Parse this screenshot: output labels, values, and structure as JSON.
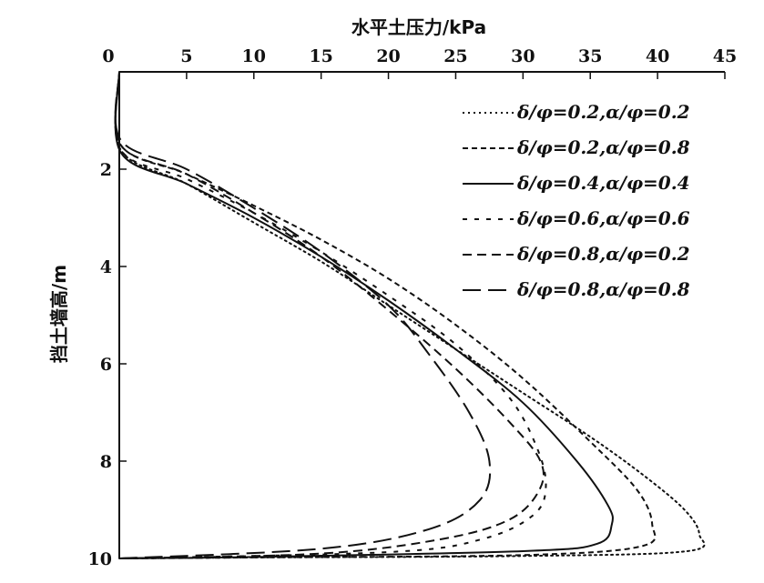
{
  "chart_data": {
    "type": "line",
    "xlabel": "水平土压力/kPa",
    "ylabel": "挡土墙高/m",
    "xlim": [
      0,
      45
    ],
    "ylim": [
      0,
      10
    ],
    "x_ticks": [
      "0",
      "5",
      "10",
      "15",
      "20",
      "25",
      "30",
      "35",
      "40",
      "45"
    ],
    "y_ticks": [
      "0",
      "2",
      "4",
      "6",
      "8",
      "10"
    ],
    "x_axis_position": "top",
    "y_inverted": true,
    "legend_position": "top-right",
    "series": [
      {
        "name": "δ/φ=0.2,α/φ=0.2",
        "dash": "dotted",
        "points": [
          [
            0,
            0
          ],
          [
            0.1,
            1.6
          ],
          [
            5,
            2.3
          ],
          [
            10,
            3.1
          ],
          [
            15,
            3.9
          ],
          [
            20,
            4.8
          ],
          [
            25,
            5.7
          ],
          [
            30,
            6.6
          ],
          [
            35,
            7.5
          ],
          [
            39,
            8.3
          ],
          [
            42,
            9.0
          ],
          [
            43.1,
            9.5
          ],
          [
            42.2,
            9.85
          ],
          [
            30,
            9.95
          ],
          [
            10,
            9.98
          ],
          [
            0,
            10
          ]
        ]
      },
      {
        "name": "δ/φ=0.2,α/φ=0.8",
        "dash": "short-dash",
        "points": [
          [
            0,
            0
          ],
          [
            0.1,
            1.5
          ],
          [
            5,
            2.1
          ],
          [
            10,
            2.75
          ],
          [
            15,
            3.45
          ],
          [
            20,
            4.25
          ],
          [
            25,
            5.2
          ],
          [
            30,
            6.3
          ],
          [
            35,
            7.6
          ],
          [
            38.5,
            8.6
          ],
          [
            39.6,
            9.3
          ],
          [
            38.8,
            9.75
          ],
          [
            30,
            9.93
          ],
          [
            10,
            9.98
          ],
          [
            0,
            10
          ]
        ]
      },
      {
        "name": "δ/φ=0.4,α/φ=0.4",
        "dash": "solid",
        "points": [
          [
            0,
            0
          ],
          [
            0.1,
            1.65
          ],
          [
            5,
            2.3
          ],
          [
            10,
            3.0
          ],
          [
            15,
            3.8
          ],
          [
            20,
            4.7
          ],
          [
            25,
            5.7
          ],
          [
            30,
            6.8
          ],
          [
            34,
            8.0
          ],
          [
            36.3,
            8.9
          ],
          [
            36.6,
            9.3
          ],
          [
            35.5,
            9.7
          ],
          [
            30,
            9.85
          ],
          [
            10,
            9.97
          ],
          [
            0,
            10
          ]
        ]
      },
      {
        "name": "δ/φ=0.6,α/φ=0.6",
        "dash": "medium-dash",
        "points": [
          [
            0,
            0
          ],
          [
            0.1,
            1.6
          ],
          [
            5,
            2.2
          ],
          [
            10,
            2.9
          ],
          [
            15,
            3.7
          ],
          [
            20,
            4.6
          ],
          [
            25,
            5.6
          ],
          [
            29,
            6.7
          ],
          [
            31,
            7.7
          ],
          [
            31.7,
            8.5
          ],
          [
            30.8,
            9.1
          ],
          [
            27,
            9.6
          ],
          [
            20,
            9.87
          ],
          [
            0,
            10
          ]
        ]
      },
      {
        "name": "δ/φ=0.8,α/φ=0.2",
        "dash": "dashed",
        "points": [
          [
            0,
            0
          ],
          [
            0.1,
            1.5
          ],
          [
            5,
            2.1
          ],
          [
            10,
            2.9
          ],
          [
            15,
            3.8
          ],
          [
            20,
            4.9
          ],
          [
            25,
            6.1
          ],
          [
            29,
            7.2
          ],
          [
            31.3,
            8.0
          ],
          [
            31.2,
            8.6
          ],
          [
            29,
            9.2
          ],
          [
            24,
            9.6
          ],
          [
            15,
            9.9
          ],
          [
            0,
            10
          ]
        ]
      },
      {
        "name": "δ/φ=0.8,α/φ=0.8",
        "dash": "long-dash",
        "points": [
          [
            0,
            0
          ],
          [
            0.1,
            1.4
          ],
          [
            5,
            2.0
          ],
          [
            10,
            2.8
          ],
          [
            15,
            3.7
          ],
          [
            20,
            4.8
          ],
          [
            23,
            5.8
          ],
          [
            26,
            7.0
          ],
          [
            27.5,
            8.0
          ],
          [
            26.8,
            8.8
          ],
          [
            23,
            9.4
          ],
          [
            15,
            9.8
          ],
          [
            0,
            10
          ]
        ]
      }
    ]
  }
}
